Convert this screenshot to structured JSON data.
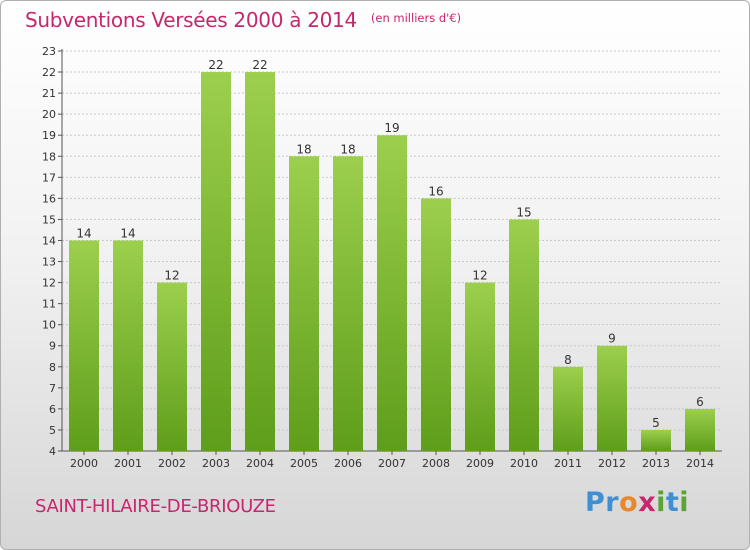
{
  "header": {
    "title": "Subventions Versées 2000 à 2014",
    "subtitle": "(en milliers d'€)"
  },
  "footer": {
    "place": "SAINT-HILAIRE-DE-BRIOUZE",
    "brand": "Proxiti",
    "brand_colors": [
      "#3f8fd2",
      "#3f8fd2",
      "#e8882c",
      "#c8266e",
      "#5aa336",
      "#3f8fd2",
      "#5aa336"
    ]
  },
  "chart_data": {
    "type": "bar",
    "title": "Subventions Versées 2000 à 2014",
    "subtitle": "(en milliers d'€)",
    "categories": [
      "2000",
      "2001",
      "2002",
      "2003",
      "2004",
      "2005",
      "2006",
      "2007",
      "2008",
      "2009",
      "2010",
      "2011",
      "2012",
      "2013",
      "2014"
    ],
    "values": [
      14,
      14,
      12,
      22,
      22,
      18,
      18,
      19,
      16,
      12,
      15,
      8,
      9,
      5,
      6
    ],
    "ylim": [
      4,
      23
    ],
    "yticks": [
      4,
      5,
      6,
      7,
      8,
      9,
      10,
      11,
      12,
      13,
      14,
      15,
      16,
      17,
      18,
      19,
      20,
      21,
      22,
      23
    ],
    "grid": true,
    "bar_color_top": "#9ccf4d",
    "bar_color_bottom": "#5e9e1a"
  }
}
